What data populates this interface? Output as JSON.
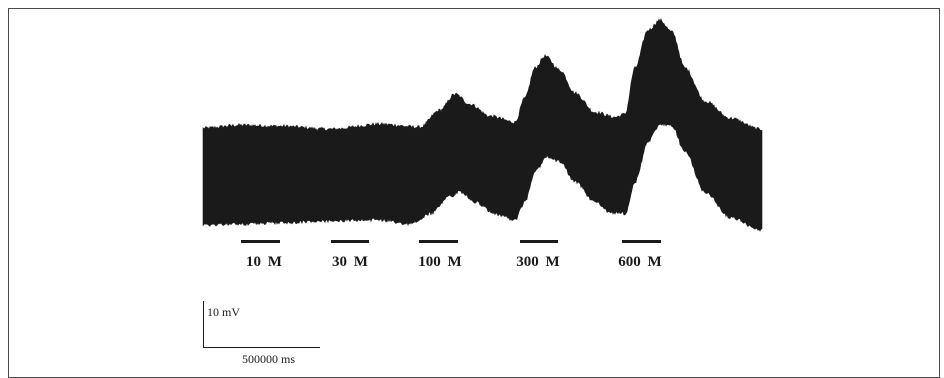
{
  "figure": {
    "stimuli": [
      {
        "label": "10  M"
      },
      {
        "label": "30  M"
      },
      {
        "label": "100  M"
      },
      {
        "label": "300  M"
      },
      {
        "label": "600  M"
      }
    ],
    "scale_bar": {
      "voltage_label": "10 mV",
      "time_label": "500000 ms"
    },
    "trace_color": "#1a1a1a"
  }
}
